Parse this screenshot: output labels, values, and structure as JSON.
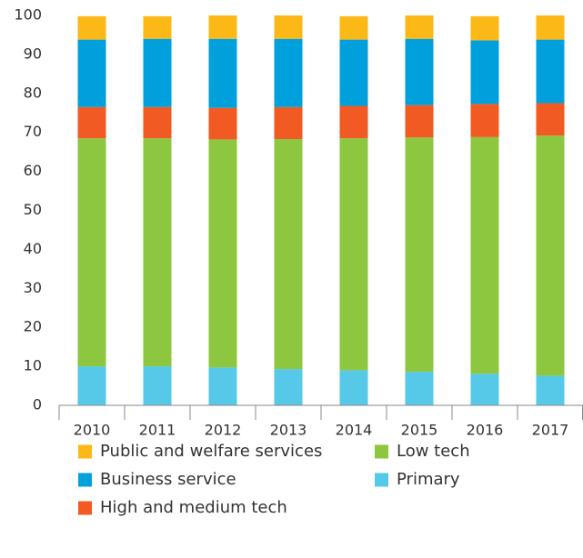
{
  "chart_data": {
    "type": "stacked_bar",
    "categories": [
      "2010",
      "2011",
      "2012",
      "2013",
      "2014",
      "2015",
      "2016",
      "2017"
    ],
    "series": [
      {
        "name": "Primary",
        "color": "#56c8e8",
        "values": [
          10,
          10,
          9.7,
          9.3,
          9,
          8.6,
          8.1,
          7.6
        ]
      },
      {
        "name": "Low tech",
        "color": "#8dc63f",
        "values": [
          58.5,
          58.5,
          58.5,
          59,
          59.5,
          60.1,
          60.7,
          61.6
        ]
      },
      {
        "name": "High and medium tech",
        "color": "#f15a22",
        "values": [
          8,
          8,
          8.1,
          8.2,
          8.3,
          8.3,
          8.5,
          8.3
        ]
      },
      {
        "name": "Business service",
        "color": "#00a0dc",
        "values": [
          17.3,
          17.5,
          17.7,
          17.5,
          17,
          17,
          16.3,
          16.3
        ]
      },
      {
        "name": "Public and welfare services",
        "color": "#fbb817",
        "values": [
          6,
          5.8,
          6,
          6,
          6,
          6,
          6.2,
          6.2
        ]
      }
    ],
    "ylim": [
      0,
      100
    ],
    "yticks": [
      0,
      10,
      20,
      30,
      40,
      50,
      60,
      70,
      80,
      90,
      100
    ],
    "grid": false
  }
}
